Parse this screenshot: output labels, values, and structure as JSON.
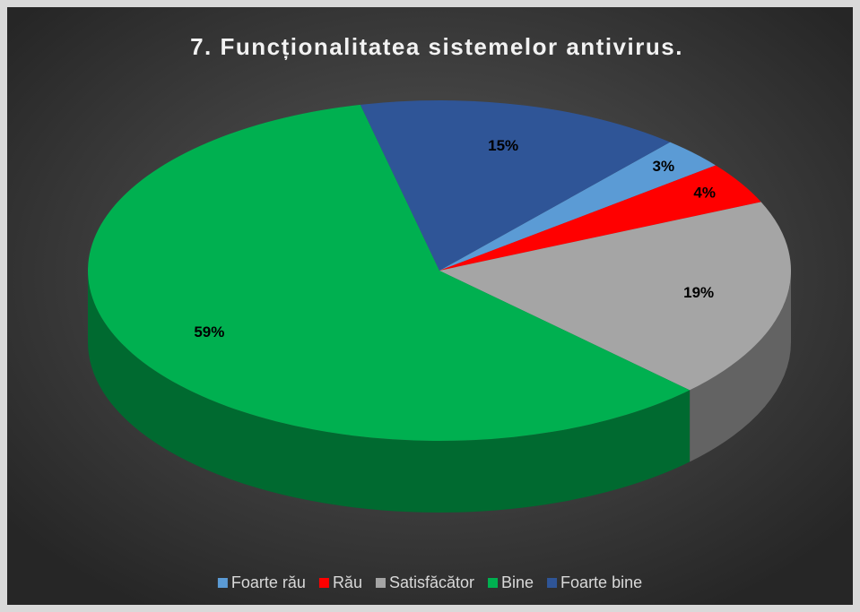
{
  "chart_data": {
    "type": "pie3d",
    "title": "7. Funcționalitatea sistemelor antivirus.",
    "categories": [
      "Foarte rău",
      "Rău",
      "Satisfăcător",
      "Bine",
      "Foarte bine"
    ],
    "values": [
      3,
      4,
      19,
      59,
      15
    ],
    "value_labels": [
      "3%",
      "4%",
      "19%",
      "59%",
      "15%"
    ],
    "colors": [
      "#5b9bd5",
      "#ff0000",
      "#a5a5a5",
      "#00b050",
      "#2f5597"
    ],
    "legend": "bottom"
  }
}
